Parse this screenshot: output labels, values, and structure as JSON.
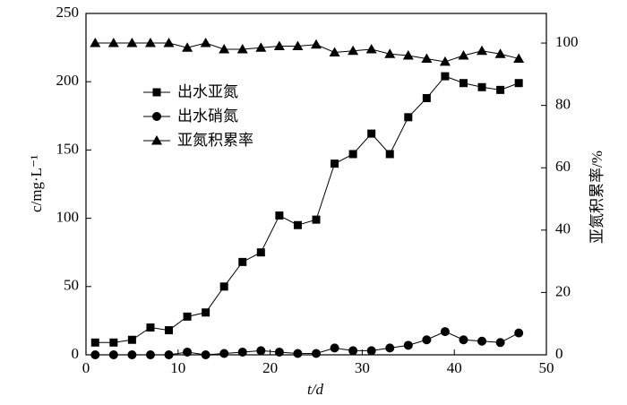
{
  "chart_data": {
    "type": "line",
    "x_label": "t/d",
    "y_label": "c/mg·L⁻¹",
    "y2_label": "亚氮积累率/%",
    "x": [
      1,
      3,
      5,
      7,
      9,
      11,
      13,
      15,
      17,
      19,
      21,
      23,
      25,
      27,
      29,
      31,
      33,
      35,
      37,
      39,
      41,
      43,
      45,
      47
    ],
    "series": [
      {
        "name": "出水亚氮",
        "color": "#000000",
        "marker": "square",
        "values": [
          9,
          9,
          11,
          20,
          18,
          28,
          31,
          50,
          68,
          75,
          102,
          95,
          99,
          140,
          147,
          162,
          147,
          174,
          188,
          204,
          199,
          196,
          194,
          199
        ]
      },
      {
        "name": "出水硝氮",
        "color": "#000000",
        "marker": "circle",
        "values": [
          0,
          0,
          0,
          0,
          0,
          2,
          0,
          1,
          2,
          3,
          2,
          1,
          1,
          5,
          3,
          3,
          5,
          7,
          11,
          17,
          11,
          10,
          9,
          16
        ]
      },
      {
        "name": "亚氮积累率",
        "color": "#000000",
        "marker": "triangle",
        "axis": "y2",
        "values": [
          100,
          100,
          100,
          100,
          100,
          98.5,
          100,
          98,
          98,
          98.5,
          99,
          99,
          99.5,
          97,
          97.5,
          98,
          96.5,
          96,
          95,
          94,
          96,
          97.5,
          96.5,
          95
        ]
      }
    ],
    "xlim": [
      0,
      50
    ],
    "xticks": [
      0,
      10,
      20,
      30,
      40,
      50
    ],
    "ylim": [
      0,
      250
    ],
    "yticks": [
      0,
      50,
      100,
      150,
      200,
      250
    ],
    "y2lim": [
      0,
      109.5
    ],
    "y2ticks": [
      0,
      20,
      40,
      60,
      80,
      100
    ],
    "legend": "upper-left"
  }
}
